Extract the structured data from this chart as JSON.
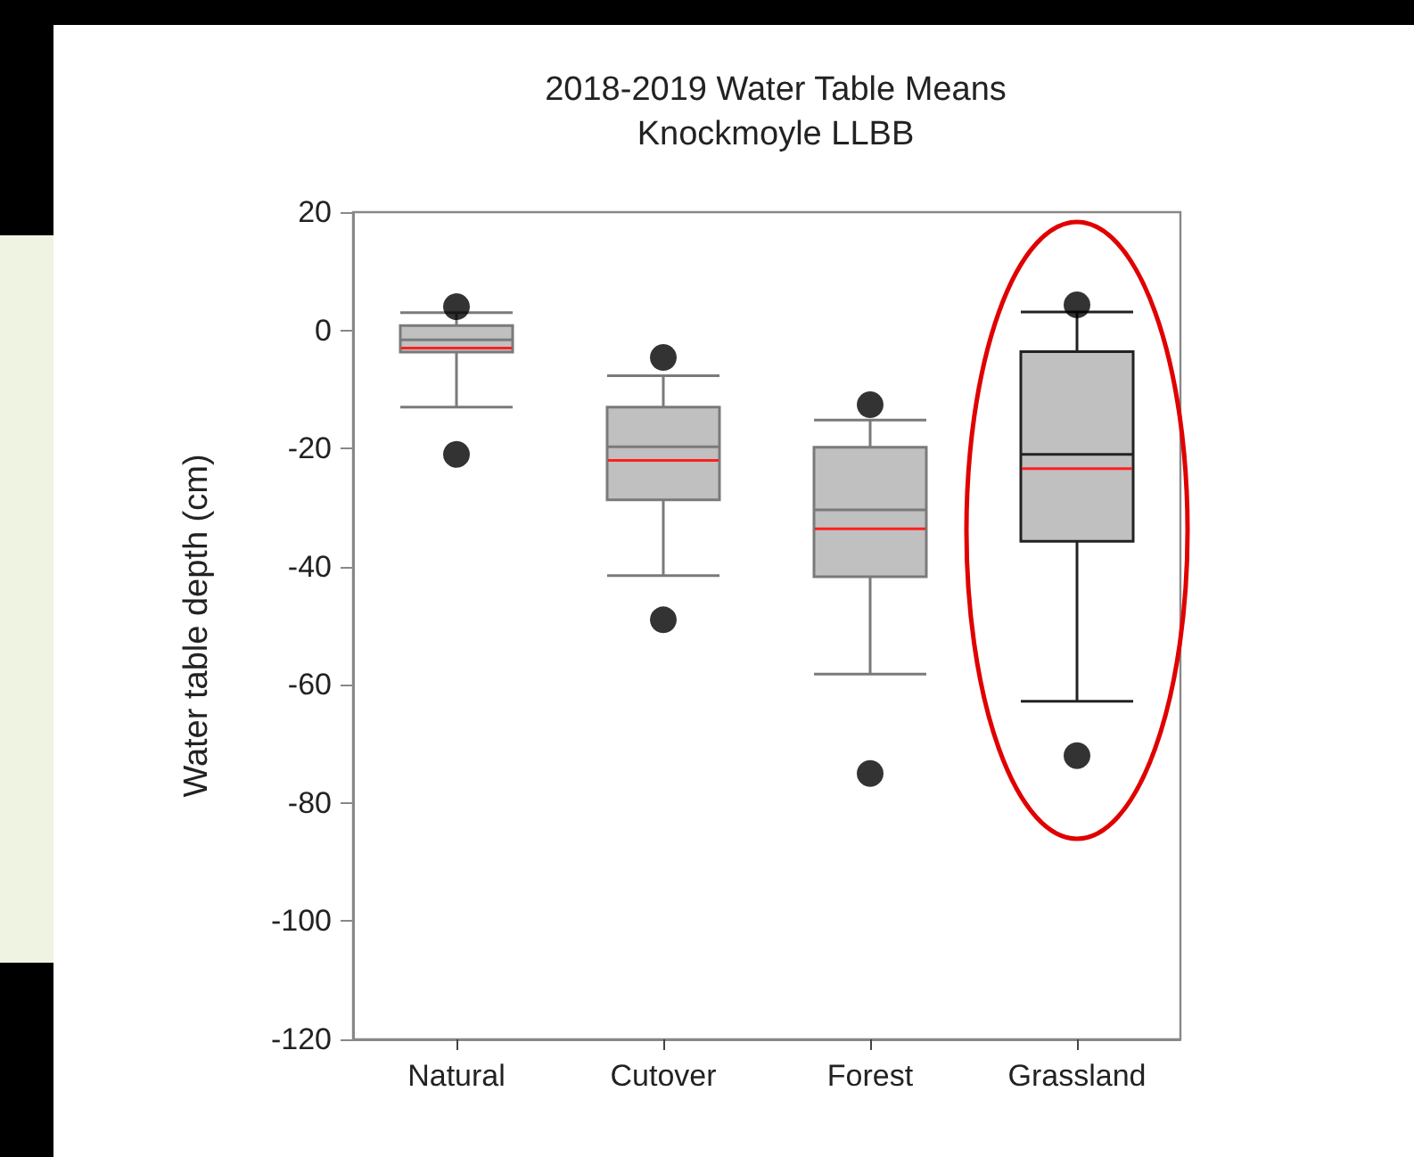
{
  "chart_data": {
    "type": "box",
    "title": "2018-2019 Water Table Means",
    "subtitle": "Knockmoyle LLBB",
    "ylabel": "Water table depth (cm)",
    "categories": [
      "Natural",
      "Cutover",
      "Forest",
      "Grassland"
    ],
    "color": "#c0c0c0",
    "boxes": [
      {
        "low": -13,
        "q1": -3.7,
        "median": -1.6,
        "q3": 0.8,
        "high": 3,
        "mean": -3,
        "outliers": [
          4,
          -21
        ]
      },
      {
        "low": -41.5,
        "q1": -28.7,
        "median": -19.7,
        "q3": -13,
        "high": -7.7,
        "mean": -22,
        "outliers": [
          -4.6,
          -49
        ]
      },
      {
        "low": -58.2,
        "q1": -41.7,
        "median": -30.4,
        "q3": -19.8,
        "high": -15.2,
        "mean": -33.6,
        "outliers": [
          -12.6,
          -75
        ]
      },
      {
        "low": -62.8,
        "q1": -35.7,
        "median": -21,
        "q3": -3.6,
        "high": 3.1,
        "mean": -23.4,
        "outliers": [
          4.3,
          -72
        ]
      }
    ],
    "ylim": [
      -120,
      20
    ],
    "yticks": [
      -120,
      -100,
      -80,
      -60,
      -40,
      -20,
      0,
      20
    ],
    "grid": false
  }
}
